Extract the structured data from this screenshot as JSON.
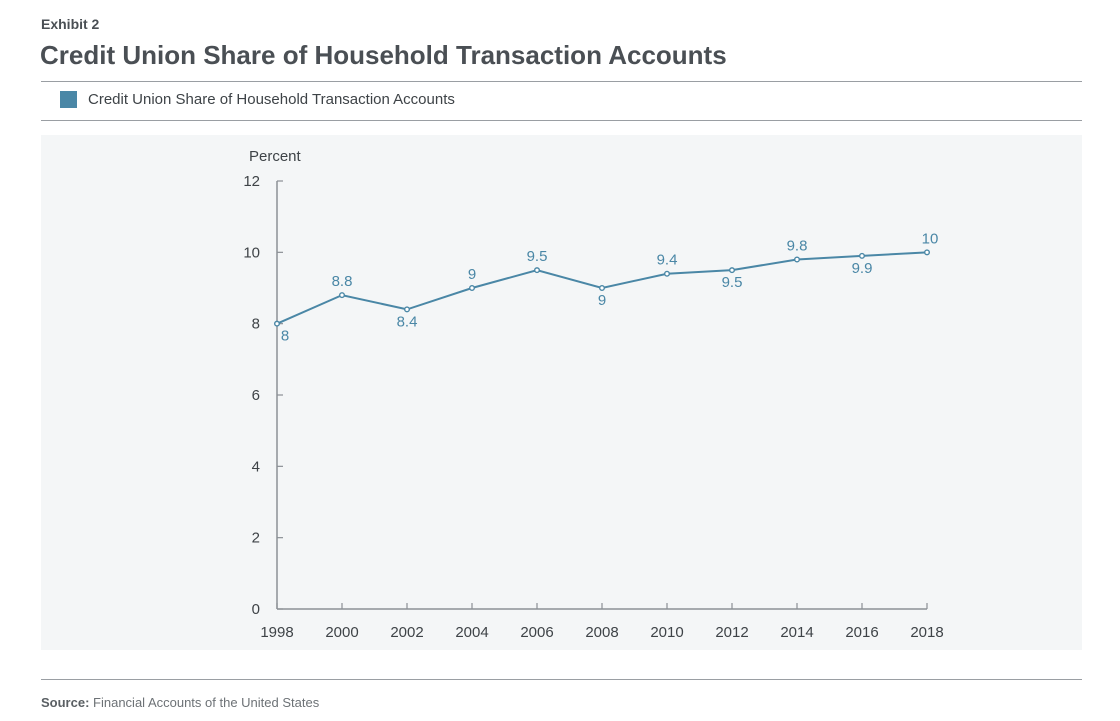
{
  "header": {
    "exhibit": "Exhibit 2",
    "title": "Credit Union Share of Household Transaction Accounts"
  },
  "legend": {
    "label": "Credit Union Share of Household Transaction Accounts",
    "color": "#4a87a6"
  },
  "footer": {
    "source_label": "Source:",
    "source_text": "Financial Accounts of the United States"
  },
  "chart_data": {
    "type": "line",
    "title": "Credit Union Share of Household Transaction Accounts",
    "ylabel": "Percent",
    "xlabel": "",
    "ylim": [
      0,
      12
    ],
    "xlim": [
      1998,
      2018
    ],
    "yticks": [
      0,
      2,
      4,
      6,
      8,
      10,
      12
    ],
    "xticks": [
      1998,
      2000,
      2002,
      2004,
      2006,
      2008,
      2010,
      2012,
      2014,
      2016,
      2018
    ],
    "grid": false,
    "legend_position": "top-left",
    "series": [
      {
        "name": "Credit Union Share of Household Transaction Accounts",
        "color": "#4a87a6",
        "x": [
          1998,
          2000,
          2002,
          2004,
          2006,
          2008,
          2010,
          2012,
          2014,
          2016,
          2018
        ],
        "values": [
          8,
          8.8,
          8.4,
          9,
          9.5,
          9,
          9.4,
          9.5,
          9.8,
          9.9,
          10
        ],
        "labels": [
          "8",
          "8.8",
          "8.4",
          "9",
          "9.5",
          "9",
          "9.4",
          "9.5",
          "9.8",
          "9.9",
          "10"
        ]
      }
    ]
  }
}
